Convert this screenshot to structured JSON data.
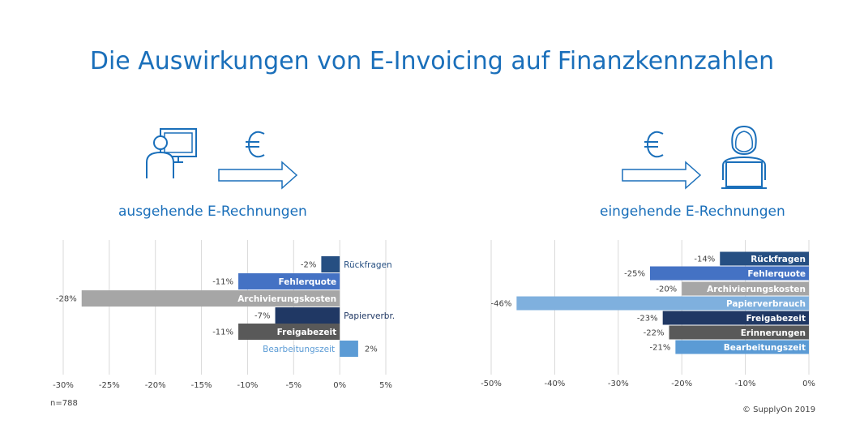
{
  "page": {
    "title": "Die Auswirkungen von E-Invoicing auf Finanzkennzahlen",
    "sample_size": "n=788",
    "copyright": "© SupplyOn 2019"
  },
  "icons": {
    "left": [
      "person-computer-icon",
      "euro-icon",
      "arrow-right-icon"
    ],
    "right": [
      "euro-icon",
      "arrow-right-icon",
      "person-laptop-icon"
    ]
  },
  "chart_data": [
    {
      "type": "bar",
      "orientation": "horizontal",
      "title": "ausgehende E-Rechnungen",
      "categories": [
        "Rückfragen",
        "Fehlerquote",
        "Archivierungskosten",
        "Papierverbr.",
        "Freigabezeit",
        "Bearbeitungszeit"
      ],
      "values": [
        -2,
        -11,
        -28,
        -7,
        -11,
        2
      ],
      "value_labels": [
        "-2%",
        "-11%",
        "-28%",
        "-7%",
        "-11%",
        "2%"
      ],
      "colors": [
        "#264f82",
        "#4472c4",
        "#a6a6a6",
        "#203864",
        "#595959",
        "#5b9bd5"
      ],
      "xlim": [
        -30,
        5
      ],
      "xticks": [
        -30,
        -25,
        -20,
        -15,
        -10,
        -5,
        0,
        5
      ],
      "xtick_labels": [
        "-30%",
        "-25%",
        "-20%",
        "-15%",
        "-10%",
        "-5%",
        "0%",
        "5%"
      ],
      "grid": true
    },
    {
      "type": "bar",
      "orientation": "horizontal",
      "title": "eingehende E-Rechnungen",
      "categories": [
        "Rückfragen",
        "Fehlerquote",
        "Archivierungskosten",
        "Papierverbrauch",
        "Freigabezeit",
        "Erinnerungen",
        "Bearbeitungszeit"
      ],
      "values": [
        -14,
        -25,
        -20,
        -46,
        -23,
        -22,
        -21
      ],
      "value_labels": [
        "-14%",
        "-25%",
        "-20%",
        "-46%",
        "-23%",
        "-22%",
        "-21%"
      ],
      "colors": [
        "#264f82",
        "#4472c4",
        "#a6a6a6",
        "#7fb0de",
        "#203864",
        "#595959",
        "#5b9bd5"
      ],
      "xlim": [
        -50,
        0
      ],
      "xticks": [
        -50,
        -40,
        -30,
        -20,
        -10,
        0
      ],
      "xtick_labels": [
        "-50%",
        "-40%",
        "-30%",
        "-20%",
        "-10%",
        "0%"
      ],
      "grid": true
    }
  ]
}
